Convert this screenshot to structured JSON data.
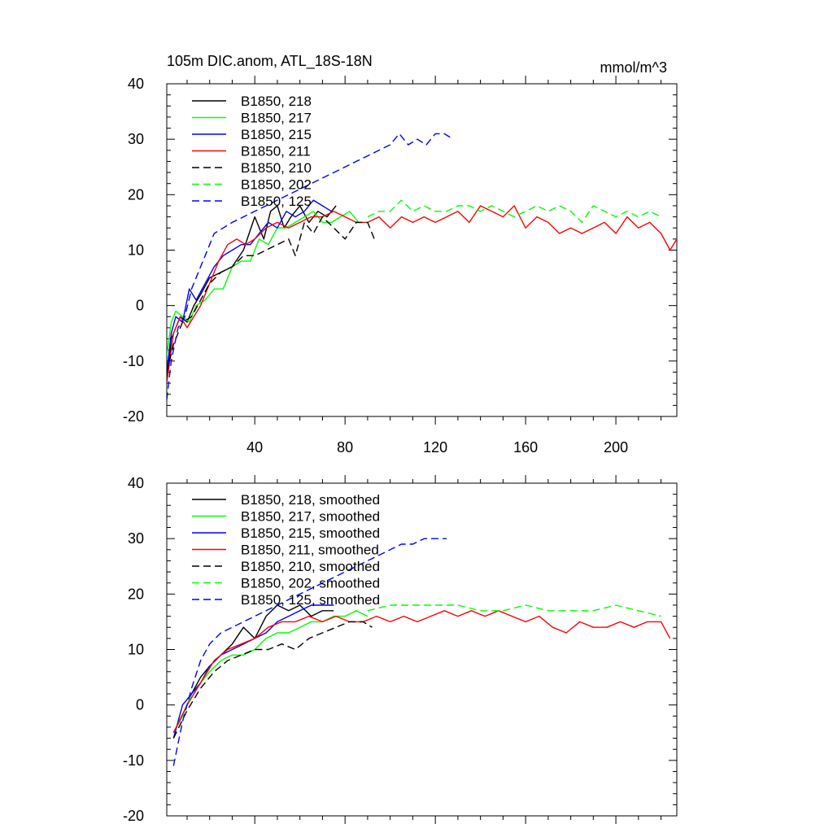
{
  "chart_data": [
    {
      "type": "line",
      "title": "105m DIC.anom, ATL_18S-18N",
      "units": "mmol/m^3",
      "xlim": [
        1,
        227
      ],
      "ylim": [
        -20,
        40
      ],
      "xticks": [
        40,
        80,
        120,
        160,
        200
      ],
      "yticks": [
        -20,
        -10,
        0,
        10,
        20,
        30,
        40
      ],
      "x_tick_labels": [
        "40",
        "80",
        "120",
        "160",
        "200"
      ],
      "y_tick_labels": [
        "-20",
        "-10",
        "0",
        "10",
        "20",
        "30",
        "40"
      ],
      "grid": false,
      "legend_position": "top-left",
      "series": [
        {
          "name": "B1850, 218",
          "color": "#000000",
          "dash": "solid",
          "x": [
            1,
            3,
            5,
            7,
            10,
            13,
            16,
            20,
            25,
            30,
            35,
            40,
            44,
            47,
            50,
            53,
            56,
            60,
            64,
            68,
            72,
            76
          ],
          "y": [
            -14,
            -6,
            -4,
            -2,
            -3,
            0,
            2,
            5,
            6,
            7,
            10,
            16,
            12,
            17,
            18,
            14,
            16,
            18,
            15,
            17,
            16,
            18
          ]
        },
        {
          "name": "B1850, 217",
          "color": "#00ff00",
          "dash": "solid",
          "x": [
            1,
            3,
            5,
            8,
            11,
            14,
            18,
            22,
            26,
            30,
            34,
            38,
            42,
            46,
            50,
            54,
            58,
            62,
            66,
            70,
            74,
            78,
            82,
            86
          ],
          "y": [
            -9,
            -3,
            -1,
            -2,
            -3,
            0,
            1,
            3,
            3,
            7,
            8,
            8,
            12,
            11,
            14,
            14,
            15,
            16,
            17,
            15,
            15,
            16,
            17,
            15
          ]
        },
        {
          "name": "B1850, 215",
          "color": "#0000ff",
          "dash": "solid",
          "x": [
            1,
            3,
            5,
            8,
            11,
            14,
            18,
            22,
            26,
            30,
            34,
            38,
            42,
            46,
            50,
            54,
            58,
            62,
            66,
            70,
            74
          ],
          "y": [
            -12,
            -5,
            -2,
            -3,
            3,
            1,
            4,
            7,
            9,
            10,
            11,
            11,
            13,
            15,
            14,
            17,
            16,
            17,
            19,
            18,
            17
          ]
        },
        {
          "name": "B1850, 211",
          "color": "#ff0000",
          "dash": "solid",
          "x": [
            1,
            4,
            7,
            10,
            13,
            16,
            20,
            24,
            28,
            32,
            36,
            40,
            45,
            50,
            55,
            60,
            65,
            70,
            75,
            80,
            85,
            90,
            95,
            100,
            105,
            110,
            115,
            120,
            125,
            130,
            135,
            140,
            145,
            150,
            155,
            160,
            165,
            170,
            175,
            180,
            185,
            190,
            195,
            200,
            205,
            210,
            215,
            220,
            224,
            227
          ],
          "y": [
            -14,
            -5,
            -2,
            -4,
            -2,
            0,
            4,
            8,
            11,
            12,
            11,
            12,
            14,
            15,
            14,
            15,
            16,
            16,
            17,
            16,
            15,
            15,
            16,
            14,
            16,
            15,
            16,
            15,
            16,
            17,
            15,
            18,
            17,
            16,
            18,
            14,
            16,
            15,
            13,
            14,
            13,
            14,
            15,
            13,
            16,
            14,
            15,
            13,
            10,
            12
          ]
        },
        {
          "name": "B1850, 210",
          "color": "#000000",
          "dash": "dashed",
          "x": [
            1,
            4,
            8,
            12,
            16,
            20,
            25,
            30,
            35,
            40,
            45,
            50,
            55,
            58,
            62,
            66,
            70,
            75,
            80,
            85,
            90,
            93
          ],
          "y": [
            -12,
            -7,
            -3,
            -2,
            1,
            4,
            6,
            7,
            9,
            9,
            10,
            11,
            12,
            9,
            15,
            13,
            16,
            14,
            12,
            15,
            15,
            12
          ]
        },
        {
          "name": "B1850, 202",
          "color": "#00ff00",
          "dash": "dashed",
          "x": [
            90,
            95,
            100,
            105,
            110,
            115,
            120,
            125,
            130,
            135,
            140,
            145,
            150,
            155,
            160,
            165,
            170,
            175,
            180,
            185,
            190,
            195,
            200,
            205,
            210,
            215,
            220
          ],
          "y": [
            16,
            17,
            17,
            19,
            17,
            18,
            17,
            17,
            18,
            18,
            17,
            18,
            17,
            16,
            17,
            18,
            17,
            18,
            17,
            15,
            18,
            17,
            16,
            17,
            16,
            17,
            16
          ]
        },
        {
          "name": "B1850, 125",
          "color": "#0000ff",
          "dash": "dashed",
          "x": [
            1,
            3,
            6,
            9,
            12,
            15,
            18,
            22,
            26,
            30,
            35,
            40,
            45,
            50,
            55,
            60,
            65,
            70,
            75,
            80,
            85,
            90,
            95,
            100,
            104,
            108,
            112,
            116,
            120,
            124,
            128
          ],
          "y": [
            -17,
            -10,
            -4,
            -2,
            3,
            6,
            9,
            13,
            14,
            15,
            16,
            17,
            18,
            19,
            20,
            21,
            22,
            23,
            24,
            25,
            26,
            27,
            28,
            29,
            31,
            29,
            30,
            29,
            31,
            31,
            30
          ]
        }
      ]
    },
    {
      "type": "line",
      "xlim": [
        1,
        227
      ],
      "ylim": [
        -20,
        40
      ],
      "xticks": [
        40,
        80,
        120,
        160,
        200
      ],
      "yticks": [
        -20,
        -10,
        0,
        10,
        20,
        30,
        40
      ],
      "y_tick_labels": [
        "-20",
        "-10",
        "0",
        "10",
        "20",
        "30",
        "40"
      ],
      "grid": false,
      "legend_position": "top-left",
      "series": [
        {
          "name": "B1850, 218, smoothed",
          "color": "#000000",
          "dash": "solid",
          "x": [
            4,
            8,
            12,
            16,
            20,
            25,
            30,
            35,
            40,
            45,
            50,
            55,
            60,
            65,
            70,
            75
          ],
          "y": [
            -5,
            -2,
            2,
            5,
            7,
            9,
            11,
            14,
            12,
            16,
            18,
            17,
            18,
            16,
            17,
            17
          ]
        },
        {
          "name": "B1850, 217, smoothed",
          "color": "#00ff00",
          "dash": "solid",
          "x": [
            4,
            8,
            12,
            16,
            20,
            25,
            30,
            35,
            40,
            45,
            50,
            55,
            60,
            65,
            70,
            75,
            80,
            85,
            90
          ],
          "y": [
            -5,
            -2,
            2,
            4,
            6,
            8,
            9,
            9,
            10,
            12,
            13,
            13,
            14,
            15,
            15,
            16,
            16,
            17,
            16
          ]
        },
        {
          "name": "B1850, 215, smoothed",
          "color": "#0000ff",
          "dash": "solid",
          "x": [
            4,
            8,
            12,
            16,
            20,
            25,
            30,
            35,
            40,
            45,
            50,
            55,
            60,
            65,
            70,
            75
          ],
          "y": [
            -6,
            0,
            2,
            4,
            7,
            9,
            10,
            11,
            12,
            13,
            15,
            16,
            17,
            18,
            18,
            18
          ]
        },
        {
          "name": "B1850, 211, smoothed",
          "color": "#ff0000",
          "dash": "solid",
          "x": [
            4,
            10,
            16,
            22,
            28,
            34,
            40,
            46,
            52,
            58,
            64,
            70,
            76,
            82,
            88,
            94,
            100,
            106,
            112,
            118,
            124,
            130,
            136,
            142,
            148,
            154,
            160,
            166,
            172,
            178,
            184,
            190,
            196,
            202,
            208,
            214,
            220,
            224
          ],
          "y": [
            -5,
            0,
            4,
            8,
            10,
            11,
            12,
            14,
            15,
            15,
            16,
            15,
            16,
            15,
            15,
            16,
            15,
            16,
            15,
            16,
            17,
            16,
            17,
            16,
            17,
            16,
            15,
            16,
            14,
            13,
            15,
            14,
            14,
            15,
            14,
            15,
            15,
            12
          ]
        },
        {
          "name": "B1850, 210, smoothed",
          "color": "#000000",
          "dash": "dashed",
          "x": [
            4,
            10,
            16,
            22,
            28,
            34,
            40,
            46,
            52,
            58,
            64,
            70,
            76,
            82,
            88,
            92
          ],
          "y": [
            -6,
            -1,
            3,
            6,
            8,
            9,
            10,
            10,
            11,
            10,
            12,
            13,
            14,
            15,
            15,
            14
          ]
        },
        {
          "name": "B1850, 202, smoothed",
          "color": "#00ff00",
          "dash": "dashed",
          "x": [
            90,
            100,
            110,
            120,
            130,
            140,
            150,
            160,
            170,
            180,
            190,
            200,
            210,
            220
          ],
          "y": [
            17,
            18,
            18,
            18,
            18,
            17,
            17,
            18,
            17,
            17,
            17,
            18,
            17,
            16
          ]
        },
        {
          "name": "B1850, 125, smoothed",
          "color": "#0000ff",
          "dash": "dashed",
          "x": [
            4,
            8,
            12,
            16,
            20,
            25,
            30,
            35,
            40,
            45,
            50,
            55,
            60,
            65,
            70,
            75,
            80,
            85,
            90,
            95,
            100,
            105,
            110,
            115,
            120,
            125
          ],
          "y": [
            -11,
            -3,
            3,
            8,
            11,
            13,
            14,
            15,
            16,
            17,
            18,
            19,
            20,
            21,
            22,
            23,
            24,
            25,
            26,
            27,
            28,
            29,
            29,
            30,
            30,
            30
          ]
        }
      ]
    }
  ]
}
